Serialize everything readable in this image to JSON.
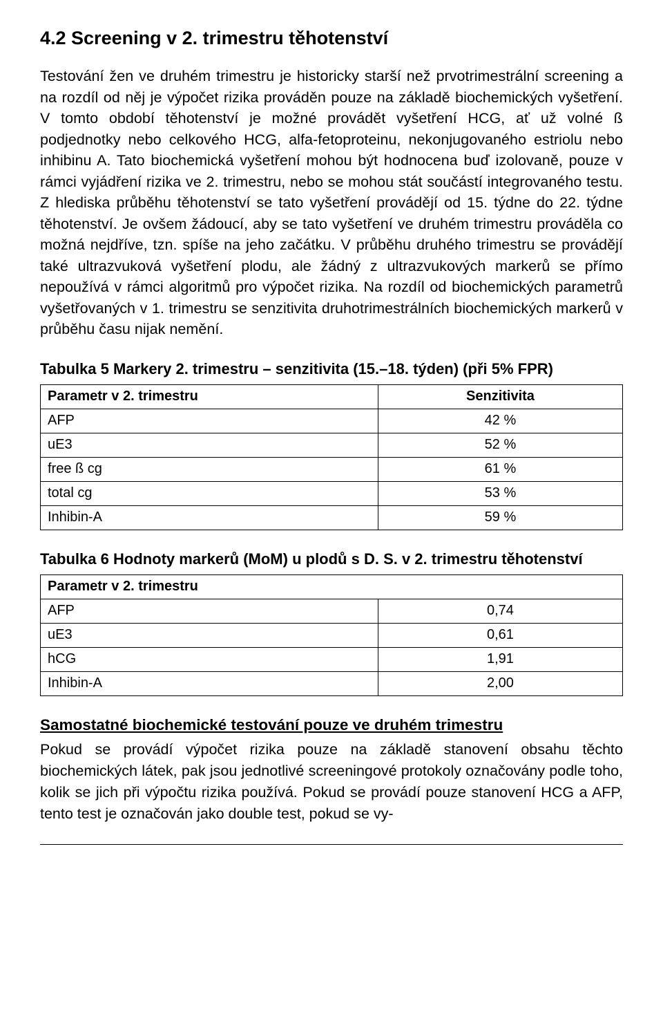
{
  "section": {
    "heading": "4.2 Screening v 2. trimestru těhotenství",
    "body": "Testování žen ve druhém trimestru je historicky starší než prvotrimestrální screening a na rozdíl od něj je výpočet rizika prováděn pouze na základě biochemických vyšetření. V tomto období těhotenství je možné provádět vyšetření HCG, ať už volné ß podjednotky nebo celkového HCG, alfa-fetoproteinu, nekonjugovaného estriolu nebo inhibinu A. Tato biochemická vyšetření mohou být hodnocena buď izolovaně, pouze v rámci vyjádření rizika ve 2. trimestru, nebo se mohou stát součástí integrovaného testu. Z hlediska průběhu těhotenství se tato vyšetření provádějí od 15. týdne do 22. týdne těhotenství. Je ovšem žádoucí, aby se tato vyšetření ve druhém trimestru prováděla co možná nejdříve, tzn. spíše na jeho začátku. V průběhu druhého trimestru se provádějí také ultrazvuková vyšetření plodu, ale žádný z ultrazvukových markerů se přímo nepoužívá v rámci algoritmů pro výpočet rizika. Na rozdíl od biochemických parametrů vyšetřovaných v 1. trimestru se senzitivita druhotrimestrálních biochemických markerů v průběhu času nijak nemění."
  },
  "table5": {
    "title": "Tabulka 5 Markery 2. trimestru – senzitivita (15.–18. týden) (při 5% FPR)",
    "head_left": "Parametr v 2. trimestru",
    "head_right": "Senzitivita",
    "rows": [
      {
        "p": "AFP",
        "v": "42 %"
      },
      {
        "p": "uE3",
        "v": "52 %"
      },
      {
        "p": "free ß cg",
        "v": "61 %"
      },
      {
        "p": "total cg",
        "v": "53 %"
      },
      {
        "p": "Inhibin-A",
        "v": "59 %"
      }
    ]
  },
  "table6": {
    "title": "Tabulka 6 Hodnoty markerů (MoM) u plodů s D. S. v 2. trimestru těhotenství",
    "head_left": "Parametr v 2. trimestru",
    "rows": [
      {
        "p": "AFP",
        "v": "0,74"
      },
      {
        "p": "uE3",
        "v": "0,61"
      },
      {
        "p": "hCG",
        "v": "1,91"
      },
      {
        "p": "Inhibin-A",
        "v": "2,00"
      }
    ]
  },
  "subsection": {
    "heading": "Samostatné biochemické testování pouze ve druhém trimestru",
    "body": "Pokud se provádí výpočet rizika pouze na základě stanovení obsahu těchto biochemických látek, pak jsou jednotlivé screeningové protokoly označovány podle toho, kolik se jich při výpočtu rizika používá. Pokud se provádí pouze stanovení HCG a AFP, tento test je označován jako double test, pokud se vy-"
  },
  "style": {
    "background": "#ffffff",
    "text_color": "#000000",
    "border_color": "#000000"
  }
}
